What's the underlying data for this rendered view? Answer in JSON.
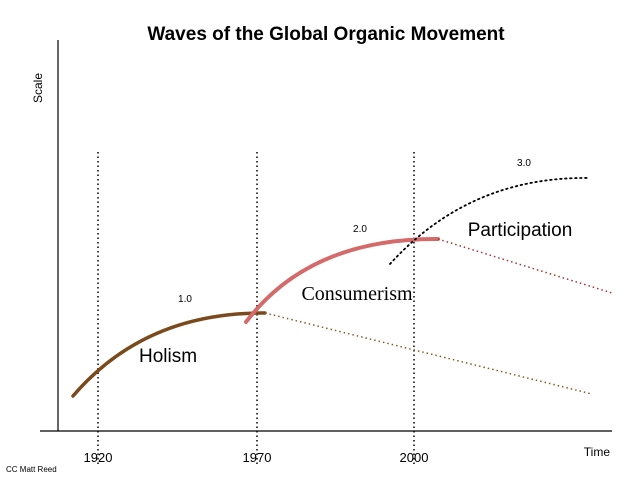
{
  "title": "Waves of the Global Organic Movement",
  "axes": {
    "y_label": "Scale",
    "x_label": "Time"
  },
  "ticks": [
    "1920",
    "1970",
    "2000"
  ],
  "waves": [
    {
      "version": "1.0",
      "name": "Holism",
      "color": "#7a4a1c"
    },
    {
      "version": "2.0",
      "name": "Consumerism",
      "color": "#d46a6a"
    },
    {
      "version": "3.0",
      "name": "Participation",
      "color": "#000000"
    }
  ],
  "credit": "CC Matt Reed"
}
